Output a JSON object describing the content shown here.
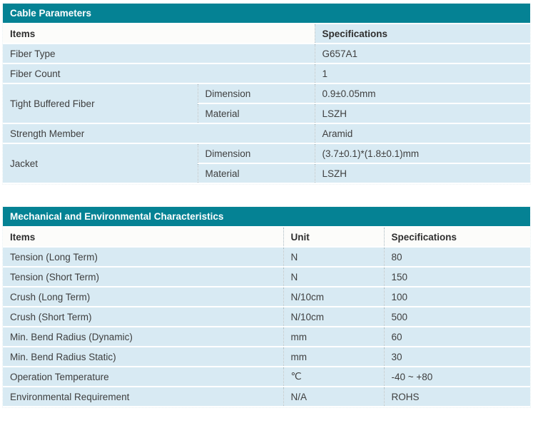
{
  "colors": {
    "accent_teal": "#058294",
    "row_blue": "#d8eaf3",
    "header_bg": "#fcfcfa",
    "divider_dotted": "#a4b4ba"
  },
  "tables": [
    {
      "title": "Cable Parameters",
      "header": {
        "items": "Items",
        "specifications": "Specifications"
      },
      "rows": [
        {
          "item": "Fiber Type",
          "spec": "G657A1"
        },
        {
          "item": "Fiber Count",
          "spec": "1"
        },
        {
          "item": "Tight Buffered Fiber",
          "subrows": [
            {
              "attr": "Dimension",
              "spec": "0.9±0.05mm"
            },
            {
              "attr": "Material",
              "spec": "LSZH"
            }
          ]
        },
        {
          "item": "Strength Member",
          "spec": "Aramid"
        },
        {
          "item": "Jacket",
          "subrows": [
            {
              "attr": "Dimension",
              "spec": "(3.7±0.1)*(1.8±0.1)mm"
            },
            {
              "attr": "Material",
              "spec": "LSZH"
            }
          ]
        }
      ]
    },
    {
      "title": "Mechanical and Environmental Characteristics",
      "header": {
        "items": "Items",
        "unit": "Unit",
        "specifications": "Specifications"
      },
      "rows": [
        {
          "item": "Tension (Long Term)",
          "unit": "N",
          "spec": "80"
        },
        {
          "item": "Tension (Short Term)",
          "unit": "N",
          "spec": "150"
        },
        {
          "item": "Crush (Long Term)",
          "unit": "N/10cm",
          "spec": "100"
        },
        {
          "item": "Crush (Short Term)",
          "unit": "N/10cm",
          "spec": "500"
        },
        {
          "item": "Min. Bend Radius (Dynamic)",
          "unit": "mm",
          "spec": "60"
        },
        {
          "item": "Min. Bend Radius Static)",
          "unit": "mm",
          "spec": "30"
        },
        {
          "item": "Operation Temperature",
          "unit": "℃",
          "spec": "-40 ~ +80"
        },
        {
          "item": "Environmental Requirement",
          "unit": "N/A",
          "spec": "ROHS"
        }
      ]
    }
  ]
}
